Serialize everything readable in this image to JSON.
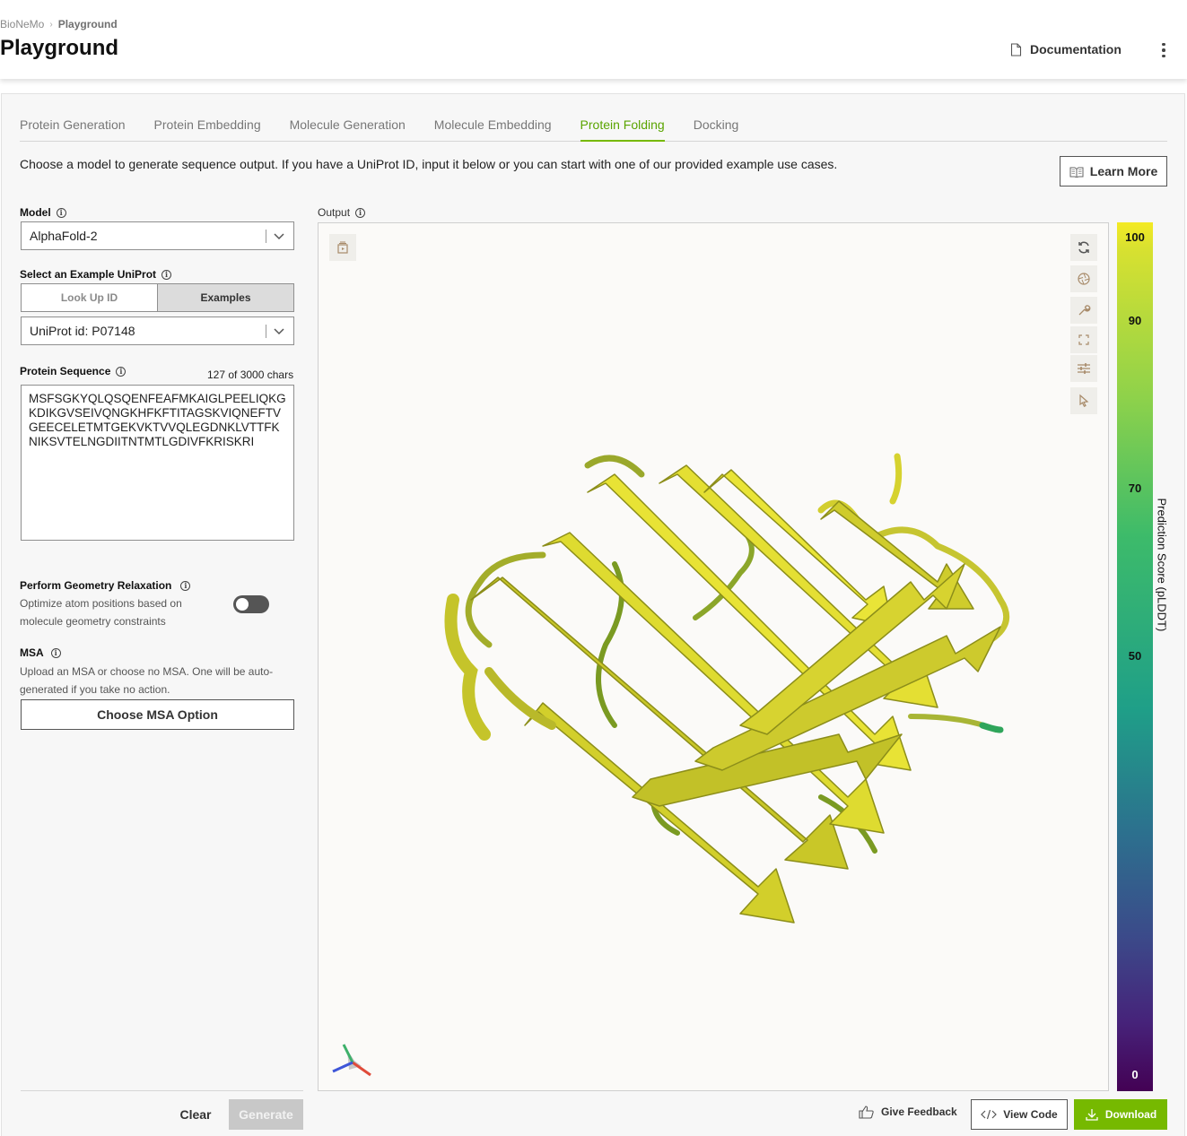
{
  "header": {
    "breadcrumb": [
      "BioNeMo",
      "Playground"
    ],
    "title": "Playground",
    "documentation_label": "Documentation",
    "more_icon": "kebab-vertical-icon"
  },
  "tabs": [
    {
      "label": "Protein Generation",
      "active": false
    },
    {
      "label": "Protein Embedding",
      "active": false
    },
    {
      "label": "Molecule Generation",
      "active": false
    },
    {
      "label": "Molecule Embedding",
      "active": false
    },
    {
      "label": "Protein Folding",
      "active": true
    },
    {
      "label": "Docking",
      "active": false
    }
  ],
  "intro_text": "Choose a model to generate sequence output. If you have a UniProt ID, input it below or you can start with one of our provided example use cases.",
  "learn_more_label": "Learn More",
  "form": {
    "model_label": "Model",
    "model_value": "AlphaFold-2",
    "example_label": "Select an Example UniProt",
    "segment": {
      "lookup": "Look Up ID",
      "examples": "Examples",
      "selected": "Examples"
    },
    "uniprot_value": "UniProt id: P07148",
    "sequence_label": "Protein Sequence",
    "sequence_count": "127 of 3000 chars",
    "sequence_value": "MSFSGKYQLQSQENFEAFMKAIGLPEELIQKGKDIKGVSEIVQNGKHFKFTITAGSKVIQNEFTVGEECELETMTGEKVKTVVQLEGDNKLVTTFKNIKSVTELNGDIITNTMTLGDIVFKRISKRI",
    "relax_label": "Perform Geometry Relaxation",
    "relax_desc_1": "Optimize atom positions based on",
    "relax_desc_2": "molecule geometry constraints",
    "relax_enabled": false,
    "msa_label": "MSA",
    "msa_desc_1": "Upload an MSA or choose no MSA. One will be auto-",
    "msa_desc_2": "generated if you take no action.",
    "msa_button": "Choose MSA Option",
    "clear_label": "Clear",
    "generate_label": "Generate"
  },
  "output": {
    "label": "Output",
    "scale_title": "Prediction Score (pLDDT)",
    "scale_ticks": [
      "100",
      "90",
      "70",
      "50",
      "0"
    ],
    "colors": {
      "high": "#f4ea24",
      "low": "#440154",
      "accent": "#76b900"
    },
    "toolbar_icons": [
      "rotate-icon",
      "aperture-icon",
      "wrench-icon",
      "fullscreen-icon",
      "sliders-icon",
      "pointer-icon"
    ],
    "feedback_label": "Give Feedback",
    "view_code_label": "View Code",
    "download_label": "Download"
  }
}
